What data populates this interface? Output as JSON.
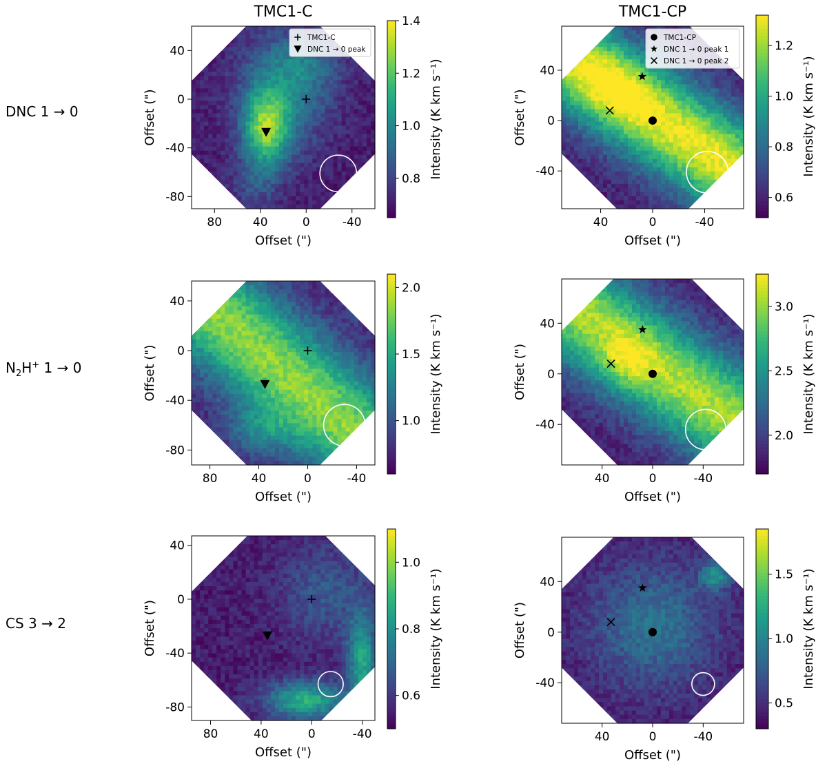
{
  "figure": {
    "columns": [
      "TMC1-C",
      "TMC1-CP"
    ],
    "rows": [
      {
        "name": "DNC",
        "label_main": "DNC 1",
        "label_arrow": "→",
        "label_end": "0"
      },
      {
        "name": "N2H+",
        "label_pre": "N",
        "label_sub": "2",
        "label_mid": "H",
        "label_sup": "+",
        "label_main": " 1",
        "label_arrow": "→",
        "label_end": "0"
      },
      {
        "name": "CS",
        "label_main": "CS 3",
        "label_arrow": "→",
        "label_end": "2"
      }
    ],
    "colors": {
      "viridis": [
        "#440154",
        "#482777",
        "#3e4989",
        "#31688e",
        "#26828e",
        "#1f9e89",
        "#35b779",
        "#6ece58",
        "#b5de2b",
        "#fde725"
      ],
      "beam": "#ffffff",
      "marker": "#000000"
    }
  },
  "chart_data": [
    {
      "type": "heatmap",
      "id": "dnc-tmc1c",
      "title": "TMC1-C",
      "xlabel": "Offset (\")",
      "ylabel": "Offset (\")",
      "colorbar_label": "Intensity (K km s⁻¹)",
      "xlim": [
        100,
        -60
      ],
      "ylim": [
        -90,
        60
      ],
      "xticks": [
        80,
        40,
        0,
        -40
      ],
      "xtick_labels": [
        "80",
        "40",
        "0",
        "-40"
      ],
      "yticks": [
        40,
        0,
        -40,
        -80
      ],
      "ytick_labels": [
        "40",
        "0",
        "-40",
        "-80"
      ],
      "clim": [
        0.65,
        1.4
      ],
      "cticks": [
        0.8,
        1.0,
        1.2,
        1.4
      ],
      "ctick_labels": [
        "0.8",
        "1.0",
        "1.2",
        "1.4"
      ],
      "map_center": [
        20,
        -15
      ],
      "markers": [
        {
          "label": "TMC1-C",
          "shape": "plus",
          "x": 0,
          "y": 0
        },
        {
          "label": "DNC 1 → 0 peak",
          "shape": "triangle",
          "x": 35,
          "y": -27
        }
      ],
      "legend": [
        {
          "shape": "plus",
          "text": "TMC1-C"
        },
        {
          "shape": "triangle",
          "text": "DNC 1 → 0 peak"
        }
      ],
      "beam": {
        "x": -28,
        "y": -61,
        "r": 16
      },
      "features": [
        {
          "kind": "blob",
          "x": 35,
          "y": -25,
          "sx": 14,
          "sy": 22,
          "v": 0.62
        },
        {
          "kind": "blob",
          "x": 20,
          "y": 5,
          "sx": 28,
          "sy": 34,
          "v": 0.32
        },
        {
          "kind": "blob",
          "x": 0,
          "y": 30,
          "sx": 22,
          "sy": 18,
          "v": 0.18
        },
        {
          "kind": "blob",
          "x": 45,
          "y": -70,
          "sx": 14,
          "sy": 14,
          "v": 0.15
        }
      ]
    },
    {
      "type": "heatmap",
      "id": "dnc-tmc1cp",
      "title": "TMC1-CP",
      "xlabel": "Offset (\")",
      "ylabel": "Offset (\")",
      "colorbar_label": "Intensity (K km s⁻¹)",
      "xlim": [
        70,
        -70
      ],
      "ylim": [
        -70,
        75
      ],
      "xticks": [
        40,
        0,
        -40
      ],
      "xtick_labels": [
        "40",
        "0",
        "-40"
      ],
      "yticks": [
        40,
        0,
        -40
      ],
      "ytick_labels": [
        "40",
        "0",
        "-40"
      ],
      "clim": [
        0.52,
        1.32
      ],
      "cticks": [
        0.6,
        0.8,
        1.0,
        1.2
      ],
      "ctick_labels": [
        "0.6",
        "0.8",
        "1.0",
        "1.2"
      ],
      "map_center": [
        0,
        3
      ],
      "markers": [
        {
          "label": "TMC1-CP",
          "shape": "dot",
          "x": 0,
          "y": 0
        },
        {
          "label": "DNC 1 → 0 peak 1",
          "shape": "star",
          "x": 8,
          "y": 35
        },
        {
          "label": "DNC 1 → 0 peak 2",
          "shape": "cross",
          "x": 33,
          "y": 8
        }
      ],
      "legend": [
        {
          "shape": "dot",
          "text": "TMC1-CP"
        },
        {
          "shape": "star",
          "text": "DNC 1 → 0 peak 1"
        },
        {
          "shape": "cross",
          "text": "DNC 1 → 0 peak 2"
        }
      ],
      "beam": {
        "x": -42,
        "y": -41,
        "r": 16
      },
      "features": [
        {
          "kind": "band",
          "x": 15,
          "y": 15,
          "angle": 35,
          "width": 26,
          "v": 0.9
        },
        {
          "kind": "blob",
          "x": 25,
          "y": 25,
          "sx": 18,
          "sy": 18,
          "v": 0.15
        }
      ]
    },
    {
      "type": "heatmap",
      "id": "n2h-tmc1c",
      "title": "",
      "xlabel": "Offset (\")",
      "ylabel": "Offset (\")",
      "colorbar_label": "Intensity (K km s⁻¹)",
      "xlim": [
        95,
        -55
      ],
      "ylim": [
        -92,
        56
      ],
      "xticks": [
        80,
        40,
        0,
        -40
      ],
      "xtick_labels": [
        "80",
        "40",
        "0",
        "-40"
      ],
      "yticks": [
        40,
        0,
        -40,
        -80
      ],
      "ytick_labels": [
        "40",
        "0",
        "-40",
        "-80"
      ],
      "clim": [
        0.6,
        2.1
      ],
      "cticks": [
        1.0,
        1.5,
        2.0
      ],
      "ctick_labels": [
        "1.0",
        "1.5",
        "2.0"
      ],
      "map_center": [
        20,
        -18
      ],
      "markers": [
        {
          "label": "TMC1-C",
          "shape": "plus",
          "x": 0,
          "y": 0
        },
        {
          "label": "DNC 1 → 0 peak",
          "shape": "triangle",
          "x": 35,
          "y": -27
        }
      ],
      "legend": [],
      "beam": {
        "x": -30,
        "y": -60,
        "r": 17
      },
      "features": [
        {
          "kind": "band",
          "x": 10,
          "y": -25,
          "angle": 40,
          "width": 30,
          "v": 0.75
        },
        {
          "kind": "blob",
          "x": 40,
          "y": -65,
          "sx": 20,
          "sy": 14,
          "v": 0.25
        },
        {
          "kind": "blob",
          "x": -45,
          "y": 45,
          "sx": 8,
          "sy": 12,
          "v": 0.3
        }
      ]
    },
    {
      "type": "heatmap",
      "id": "n2h-tmc1cp",
      "title": "",
      "xlabel": "Offset (\")",
      "ylabel": "Offset (\")",
      "colorbar_label": "Intensity (K km s⁻¹)",
      "xlim": [
        72,
        -72
      ],
      "ylim": [
        -72,
        75
      ],
      "xticks": [
        40,
        0,
        -40
      ],
      "xtick_labels": [
        "40",
        "0",
        "-40"
      ],
      "yticks": [
        40,
        0,
        -40
      ],
      "ytick_labels": [
        "40",
        "0",
        "-40"
      ],
      "clim": [
        1.7,
        3.25
      ],
      "cticks": [
        2.0,
        2.5,
        3.0
      ],
      "ctick_labels": [
        "2.0",
        "2.5",
        "3.0"
      ],
      "map_center": [
        0,
        3
      ],
      "markers": [
        {
          "label": "TMC1-CP",
          "shape": "dot",
          "x": 0,
          "y": 0
        },
        {
          "label": "DNC 1 → 0 peak 1",
          "shape": "star",
          "x": 8,
          "y": 35
        },
        {
          "label": "DNC 1 → 0 peak 2",
          "shape": "cross",
          "x": 33,
          "y": 8
        }
      ],
      "legend": [],
      "beam": {
        "x": -42,
        "y": -44,
        "r": 16
      },
      "features": [
        {
          "kind": "band",
          "x": 10,
          "y": 15,
          "angle": 35,
          "width": 28,
          "v": 0.8
        },
        {
          "kind": "blob",
          "x": 20,
          "y": 10,
          "sx": 14,
          "sy": 14,
          "v": 0.2
        }
      ]
    },
    {
      "type": "heatmap",
      "id": "cs-tmc1c",
      "title": "",
      "xlabel": "Offset (\")",
      "ylabel": "Offset (\")",
      "colorbar_label": "Intensity (K km s⁻¹)",
      "xlim": [
        95,
        -50
      ],
      "ylim": [
        -90,
        47
      ],
      "xticks": [
        80,
        40,
        0,
        -40
      ],
      "xtick_labels": [
        "80",
        "40",
        "0",
        "-40"
      ],
      "yticks": [
        40,
        0,
        -40,
        -80
      ],
      "ytick_labels": [
        "40",
        "0",
        "-40",
        "-80"
      ],
      "clim": [
        0.5,
        1.1
      ],
      "cticks": [
        0.6,
        0.8,
        1.0
      ],
      "ctick_labels": [
        "0.6",
        "0.8",
        "1.0"
      ],
      "map_center": [
        20,
        -20
      ],
      "markers": [
        {
          "label": "TMC1-C",
          "shape": "plus",
          "x": 0,
          "y": 0
        },
        {
          "label": "DNC 1 → 0 peak",
          "shape": "triangle",
          "x": 35,
          "y": -27
        }
      ],
      "legend": [],
      "beam": {
        "x": -15,
        "y": -63,
        "r": 10
      },
      "features": [
        {
          "kind": "blob",
          "x": 5,
          "y": -75,
          "sx": 22,
          "sy": 10,
          "v": 0.55
        },
        {
          "kind": "blob",
          "x": -40,
          "y": -45,
          "sx": 8,
          "sy": 25,
          "v": 0.5
        },
        {
          "kind": "blob",
          "x": -10,
          "y": 5,
          "sx": 25,
          "sy": 25,
          "v": 0.2
        }
      ]
    },
    {
      "type": "heatmap",
      "id": "cs-tmc1cp",
      "title": "",
      "xlabel": "Offset (\")",
      "ylabel": "Offset (\")",
      "colorbar_label": "Intensity (K km s⁻¹)",
      "xlim": [
        72,
        -72
      ],
      "ylim": [
        -72,
        75
      ],
      "xticks": [
        40,
        0,
        -40
      ],
      "xtick_labels": [
        "40",
        "0",
        "-40"
      ],
      "yticks": [
        40,
        0,
        -40
      ],
      "ytick_labels": [
        "40",
        "0",
        "-40"
      ],
      "clim": [
        0.3,
        1.85
      ],
      "cticks": [
        0.5,
        1.0,
        1.5
      ],
      "ctick_labels": [
        "0.5",
        "1.0",
        "1.5"
      ],
      "map_center": [
        0,
        3
      ],
      "markers": [
        {
          "label": "TMC1-CP",
          "shape": "dot",
          "x": 0,
          "y": 0
        },
        {
          "label": "DNC 1 → 0 peak 1",
          "shape": "star",
          "x": 8,
          "y": 35
        },
        {
          "label": "DNC 1 → 0 peak 2",
          "shape": "cross",
          "x": 33,
          "y": 8
        }
      ],
      "legend": [],
      "beam": {
        "x": -40,
        "y": -41,
        "r": 9
      },
      "features": [
        {
          "kind": "blob",
          "x": 0,
          "y": 5,
          "sx": 35,
          "sy": 35,
          "v": 0.3
        },
        {
          "kind": "blob",
          "x": -50,
          "y": 45,
          "sx": 8,
          "sy": 8,
          "v": 0.4
        }
      ]
    }
  ]
}
